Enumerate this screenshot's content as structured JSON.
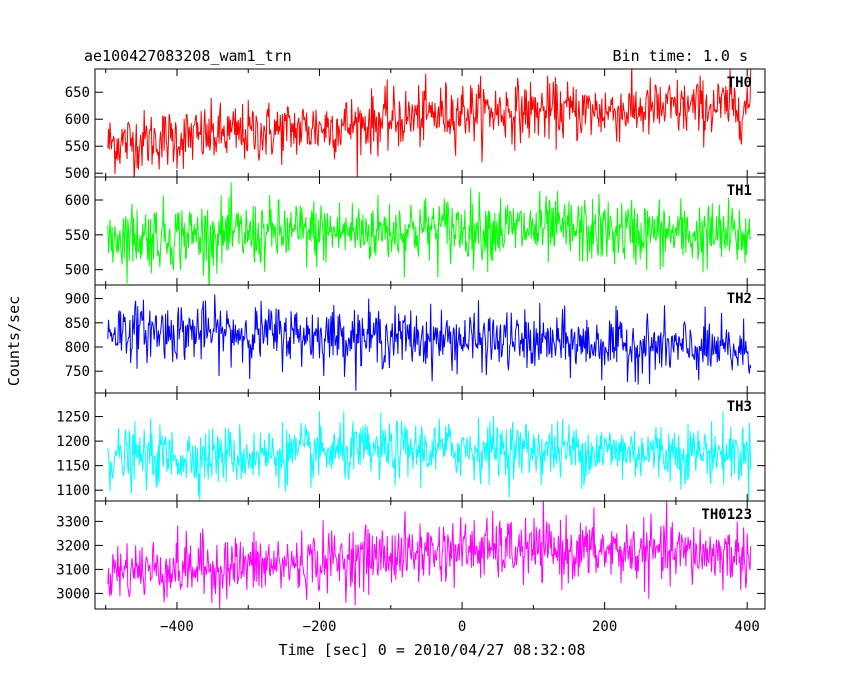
{
  "header": {
    "title": "ae100427083208_wam1_trn",
    "bin_time": "Bin time: 1.0 s"
  },
  "chart_data": {
    "type": "line",
    "title": "ae100427083208_wam1_trn",
    "xlabel": "Time [sec] 0 = 2010/04/27 08:32:08",
    "ylabel": "Counts/sec",
    "xlim": [
      -515,
      425
    ],
    "xticks": [
      -400,
      -200,
      0,
      200,
      400
    ],
    "x_start": -497,
    "x_end": 405,
    "bin_time": 1.0,
    "grid": false,
    "panels": [
      {
        "name": "TH0",
        "color": "#ff0000",
        "ylim": [
          493,
          693
        ],
        "yticks": [
          500,
          550,
          600,
          650
        ],
        "trend": [
          [
            -497,
            555
          ],
          [
            -300,
            575
          ],
          [
            -150,
            590
          ],
          [
            0,
            615
          ],
          [
            200,
            615
          ],
          [
            405,
            625
          ]
        ],
        "noise_sd": 28
      },
      {
        "name": "TH1",
        "color": "#00ff00",
        "ylim": [
          478,
          633
        ],
        "yticks": [
          500,
          550,
          600
        ],
        "trend": [
          [
            -497,
            548
          ],
          [
            -300,
            550
          ],
          [
            0,
            560
          ],
          [
            200,
            555
          ],
          [
            405,
            548
          ]
        ],
        "noise_sd": 24
      },
      {
        "name": "TH2",
        "color": "#0000ff",
        "ylim": [
          705,
          928
        ],
        "yticks": [
          750,
          800,
          850,
          900
        ],
        "trend": [
          [
            -497,
            835
          ],
          [
            -200,
            825
          ],
          [
            0,
            815
          ],
          [
            200,
            805
          ],
          [
            405,
            790
          ]
        ],
        "noise_sd": 30
      },
      {
        "name": "TH3",
        "color": "#00ffff",
        "ylim": [
          1078,
          1298
        ],
        "yticks": [
          1100,
          1150,
          1200,
          1250
        ],
        "trend": [
          [
            -497,
            1165
          ],
          [
            -200,
            1175
          ],
          [
            0,
            1185
          ],
          [
            200,
            1180
          ],
          [
            405,
            1175
          ]
        ],
        "noise_sd": 30
      },
      {
        "name": "TH0123",
        "color": "#ff00ff",
        "ylim": [
          2935,
          3385
        ],
        "yticks": [
          3000,
          3100,
          3200,
          3300
        ],
        "trend": [
          [
            -497,
            3095
          ],
          [
            -250,
            3120
          ],
          [
            0,
            3185
          ],
          [
            200,
            3175
          ],
          [
            405,
            3160
          ]
        ],
        "noise_sd": 65
      }
    ]
  }
}
